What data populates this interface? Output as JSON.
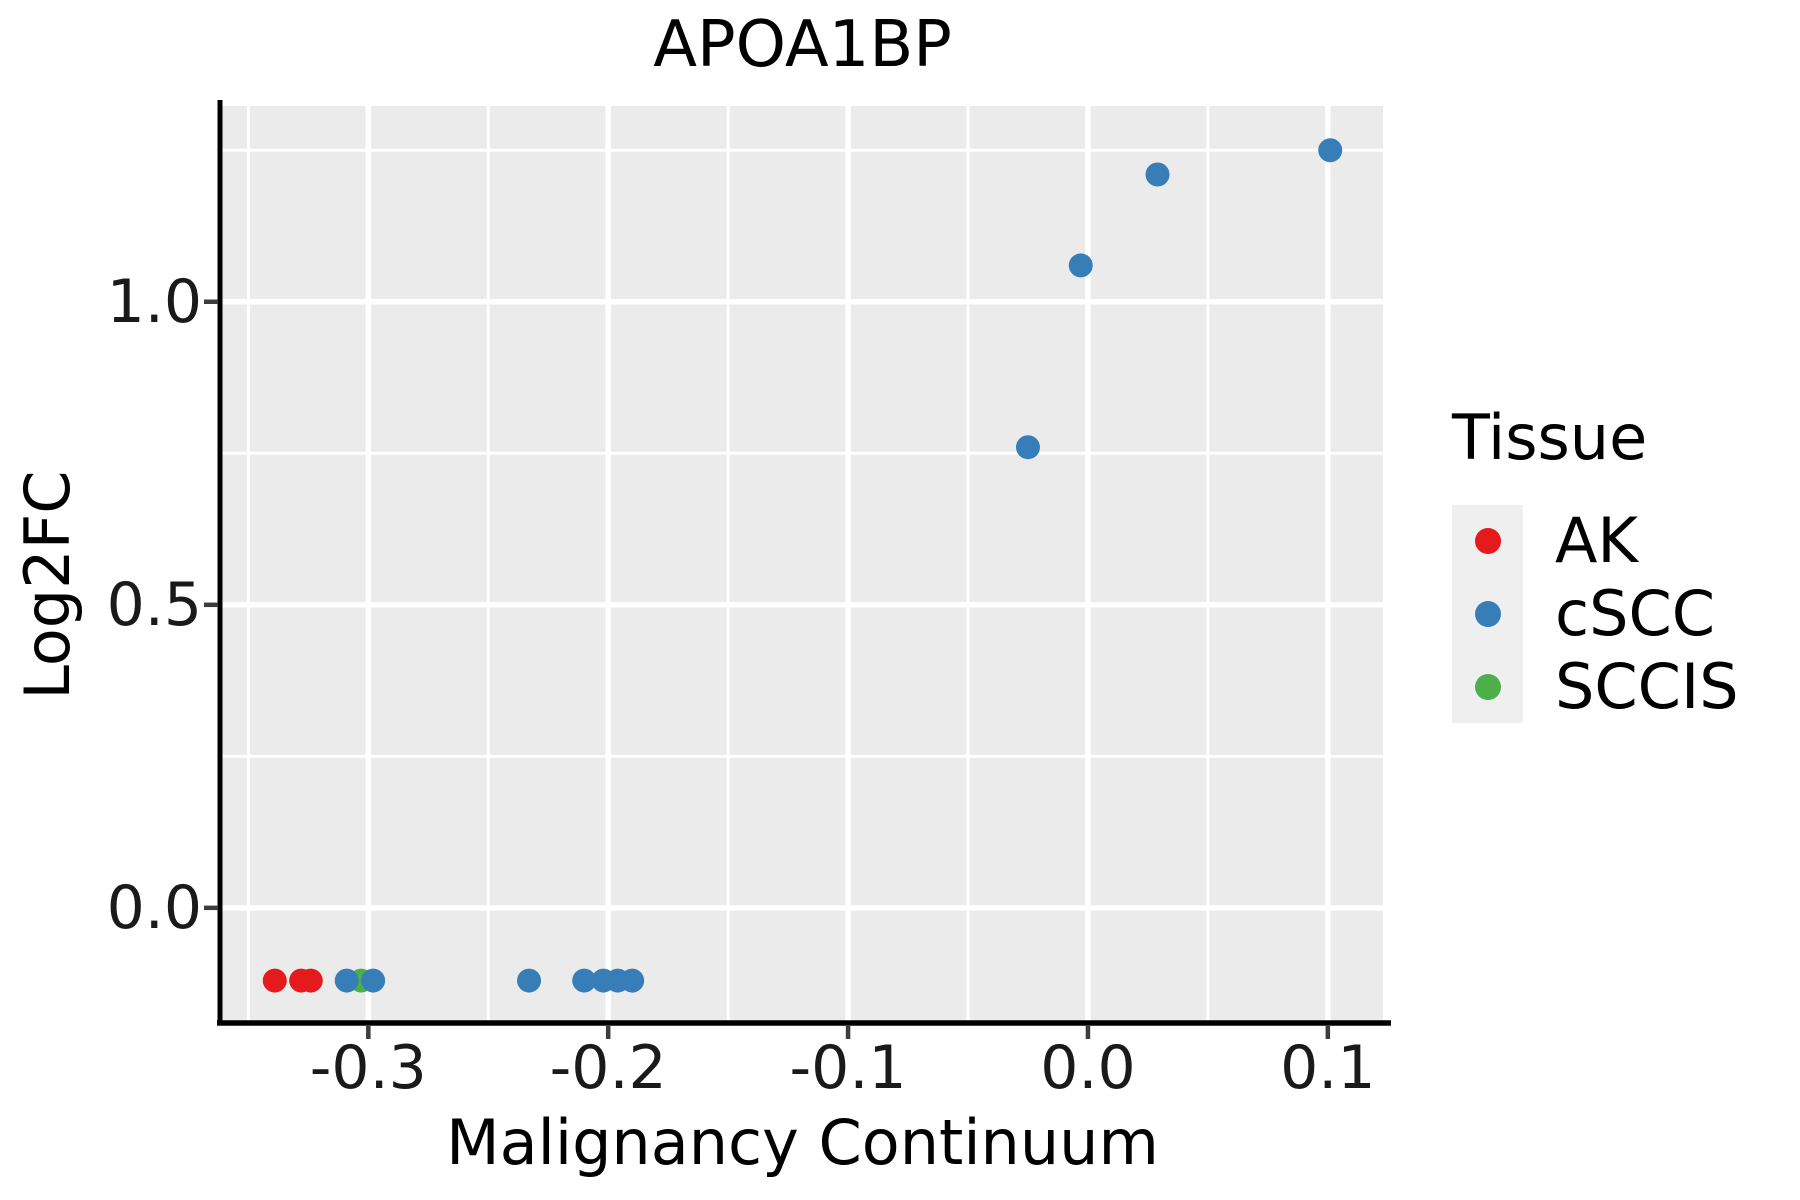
{
  "figure": {
    "title": "APOA1BP"
  },
  "chart_data": {
    "type": "scatter",
    "title": "APOA1BP",
    "xlabel": "Malignancy Continuum",
    "ylabel": "Log2FC",
    "xlim": [
      -0.361,
      0.123
    ],
    "ylim": [
      -0.19,
      1.323
    ],
    "x_ticks": {
      "values": [
        -0.3,
        -0.2,
        -0.1,
        0.0,
        0.1
      ],
      "labels": [
        "-0.3",
        "-0.2",
        "-0.1",
        "0.0",
        "0.1"
      ]
    },
    "y_ticks": {
      "values": [
        0.0,
        0.5,
        1.0
      ],
      "labels": [
        "0.0",
        "0.5",
        "1.0"
      ]
    },
    "x_minor": [
      -0.35,
      -0.25,
      -0.15,
      -0.05,
      0.05
    ],
    "y_minor": [
      0.25,
      0.75,
      1.25
    ],
    "grid": true,
    "colors": {
      "panel_bg": "#ebebeb",
      "grid": "#ffffff",
      "axis_line": "#000000",
      "tick_mark": "#3c3c3c",
      "text": "#000000"
    },
    "marker_radius": 12,
    "legend": {
      "title": "Tissue",
      "position": "right",
      "key_bg": "#efefef",
      "entries": [
        {
          "label": "AK",
          "color": "#e41a1c"
        },
        {
          "label": "cSCC",
          "color": "#377eb8"
        },
        {
          "label": "SCCIS",
          "color": "#4daf4a"
        }
      ]
    },
    "series": [
      {
        "name": "AK",
        "color": "#e41a1c",
        "points": [
          [
            -0.339,
            -0.12
          ],
          [
            -0.328,
            -0.12
          ],
          [
            -0.324,
            -0.12
          ]
        ]
      },
      {
        "name": "SCCIS",
        "color": "#4daf4a",
        "points": [
          [
            -0.303,
            -0.12
          ]
        ]
      },
      {
        "name": "cSCC",
        "color": "#377eb8",
        "points": [
          [
            -0.309,
            -0.12
          ],
          [
            -0.298,
            -0.12
          ],
          [
            -0.233,
            -0.12
          ],
          [
            -0.21,
            -0.12
          ],
          [
            -0.202,
            -0.12
          ],
          [
            -0.196,
            -0.12
          ],
          [
            -0.19,
            -0.12
          ],
          [
            -0.025,
            0.76
          ],
          [
            -0.003,
            1.06
          ],
          [
            0.029,
            1.21
          ],
          [
            0.101,
            1.25
          ]
        ]
      }
    ]
  }
}
